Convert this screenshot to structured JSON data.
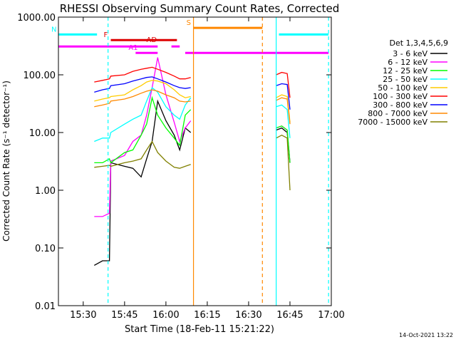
{
  "chart_data": {
    "type": "line",
    "title": "RHESSI Observing Summary Count Rates, Corrected",
    "xlabel": "Start Time (18-Feb-11 15:21:22)",
    "ylabel": "Corrected Count Rate (s⁻¹ detector⁻¹)",
    "footer": "14-Oct-2021 13:22",
    "yscale": "log",
    "xlim": [
      "15:21",
      "17:00"
    ],
    "ylim": [
      0.01,
      1000
    ],
    "x_ticks": [
      "15:30",
      "15:45",
      "16:00",
      "16:15",
      "16:30",
      "16:45",
      "17:00"
    ],
    "y_ticks": [
      "0.01",
      "0.10",
      "1.00",
      "10.00",
      "100.00",
      "1000.00"
    ],
    "legend_title": "Det 1,3,4,5,6,9",
    "legend_position": "right",
    "series": [
      {
        "name": "3 - 6 keV",
        "color": "#000000",
        "x": [
          "15:34",
          "15:37",
          "15:39.5",
          "15:40",
          "15:45",
          "15:48",
          "15:51",
          "15:53",
          "15:55",
          "15:57",
          "16:00",
          "16:03",
          "16:05",
          "16:07",
          "16:09",
          "16:40",
          "16:42",
          "16:44",
          "16:45"
        ],
        "y": [
          0.05,
          0.06,
          0.06,
          3.0,
          2.6,
          2.4,
          1.7,
          3.5,
          7,
          35,
          16,
          9,
          5,
          12,
          10,
          11,
          12,
          10,
          3
        ]
      },
      {
        "name": "6 - 12 keV",
        "color": "#ff00ff",
        "x": [
          "15:34",
          "15:37",
          "15:39.5",
          "15:40",
          "15:45",
          "15:48",
          "15:51",
          "15:53",
          "15:55",
          "15:57",
          "16:00",
          "16:03",
          "16:05",
          "16:07",
          "16:09",
          "16:40",
          "16:42",
          "16:44",
          "16:45"
        ],
        "y": [
          0.35,
          0.35,
          0.4,
          3.2,
          4,
          7,
          9,
          20,
          60,
          200,
          45,
          15,
          7,
          12,
          16,
          12,
          13,
          11,
          3
        ]
      },
      {
        "name": "12 - 25 keV",
        "color": "#00ff00",
        "x": [
          "15:34",
          "15:37",
          "15:39.5",
          "15:40",
          "15:45",
          "15:48",
          "15:51",
          "15:53",
          "15:55",
          "15:57",
          "16:00",
          "16:03",
          "16:05",
          "16:07",
          "16:09",
          "16:40",
          "16:42",
          "16:44",
          "16:45"
        ],
        "y": [
          3,
          3,
          3.5,
          3,
          4.5,
          5,
          9,
          14,
          40,
          20,
          12,
          8,
          6,
          20,
          25,
          12,
          13,
          11,
          3
        ]
      },
      {
        "name": "25 - 50 keV",
        "color": "#00ffff",
        "x": [
          "15:34",
          "15:37",
          "15:39.5",
          "15:40",
          "15:45",
          "15:48",
          "15:51",
          "15:53",
          "15:55",
          "15:57",
          "16:00",
          "16:03",
          "16:05",
          "16:07",
          "16:09",
          "16:40",
          "16:42",
          "16:44",
          "16:45"
        ],
        "y": [
          7,
          8,
          8,
          10,
          14,
          17,
          20,
          35,
          60,
          50,
          28,
          20,
          17,
          30,
          40,
          28,
          30,
          25,
          8
        ]
      },
      {
        "name": "50 - 100 keV",
        "color": "#ffcc00",
        "x": [
          "15:34",
          "15:37",
          "15:39.5",
          "15:40",
          "15:45",
          "15:48",
          "15:51",
          "15:53",
          "15:55",
          "15:57",
          "16:00",
          "16:03",
          "16:05",
          "16:07",
          "16:09",
          "16:40",
          "16:42",
          "16:44",
          "16:45"
        ],
        "y": [
          35,
          38,
          40,
          42,
          45,
          55,
          65,
          75,
          80,
          78,
          70,
          55,
          45,
          40,
          42,
          40,
          45,
          42,
          15
        ]
      },
      {
        "name": "100 - 300 keV",
        "color": "#ff0000",
        "x": [
          "15:34",
          "15:37",
          "15:39.5",
          "15:40",
          "15:45",
          "15:48",
          "15:51",
          "15:53",
          "15:55",
          "15:57",
          "16:00",
          "16:03",
          "16:05",
          "16:07",
          "16:09",
          "16:40",
          "16:42",
          "16:44",
          "16:45"
        ],
        "y": [
          75,
          80,
          85,
          95,
          100,
          115,
          125,
          130,
          135,
          125,
          110,
          95,
          85,
          85,
          90,
          100,
          110,
          105,
          40
        ]
      },
      {
        "name": "300 - 800 keV",
        "color": "#0000ff",
        "x": [
          "15:34",
          "15:37",
          "15:39.5",
          "15:40",
          "15:45",
          "15:48",
          "15:51",
          "15:53",
          "15:55",
          "15:57",
          "16:00",
          "16:03",
          "16:05",
          "16:07",
          "16:09",
          "16:40",
          "16:42",
          "16:44",
          "16:45"
        ],
        "y": [
          50,
          55,
          58,
          65,
          70,
          78,
          85,
          90,
          92,
          85,
          75,
          65,
          60,
          58,
          60,
          65,
          70,
          68,
          25
        ]
      },
      {
        "name": "800 - 7000 keV",
        "color": "#ff8800",
        "x": [
          "15:34",
          "15:37",
          "15:39.5",
          "15:40",
          "15:45",
          "15:48",
          "15:51",
          "15:53",
          "15:55",
          "15:57",
          "16:00",
          "16:03",
          "16:05",
          "16:07",
          "16:09",
          "16:40",
          "16:42",
          "16:44",
          "16:45"
        ],
        "y": [
          28,
          30,
          32,
          35,
          38,
          42,
          48,
          52,
          55,
          52,
          45,
          40,
          35,
          34,
          35,
          36,
          40,
          38,
          14
        ]
      },
      {
        "name": "7000 - 15000 keV",
        "color": "#808000",
        "x": [
          "15:34",
          "15:37",
          "15:39.5",
          "15:40",
          "15:45",
          "15:48",
          "15:51",
          "15:53",
          "15:55",
          "15:57",
          "16:00",
          "16:03",
          "16:05",
          "16:07",
          "16:09",
          "16:40",
          "16:42",
          "16:44",
          "16:45"
        ],
        "y": [
          2.5,
          2.6,
          2.7,
          2.6,
          3.0,
          3.2,
          3.5,
          5,
          7,
          4.5,
          3.2,
          2.5,
          2.4,
          2.6,
          2.8,
          8,
          9,
          8,
          1
        ]
      }
    ],
    "flag_bars": [
      {
        "label": "N",
        "color": "#00ffff",
        "level": 500,
        "segments": [
          [
            "15:21",
            "15:35"
          ],
          [
            "16:41",
            "16:59"
          ]
        ]
      },
      {
        "label": "F",
        "color": "#dd0000",
        "level": 400,
        "segments": [
          [
            "15:40",
            "16:04"
          ]
        ]
      },
      {
        "label": "AD",
        "color": "#dd0000",
        "level": 330,
        "segments": []
      },
      {
        "label": "A1",
        "color": "#ff00ff",
        "level": 240,
        "segments": [
          [
            "15:49",
            "15:57"
          ],
          [
            "16:07",
            "16:59"
          ]
        ]
      },
      {
        "label": "S",
        "color": "#ff8800",
        "level": 650,
        "segments": [
          [
            "16:10",
            "16:35"
          ]
        ]
      },
      {
        "label": "",
        "color": "#ff00ff",
        "level": 310,
        "segments": [
          [
            "15:21",
            "15:57"
          ],
          [
            "16:02",
            "16:05"
          ]
        ]
      }
    ],
    "vertical_markers": [
      {
        "x": "15:39",
        "color": "#00ffff",
        "style": "dashed"
      },
      {
        "x": "16:10",
        "color": "#ff8800",
        "style": "solid"
      },
      {
        "x": "16:35",
        "color": "#ff8800",
        "style": "dashed"
      },
      {
        "x": "16:40",
        "color": "#00ffff",
        "style": "solid"
      },
      {
        "x": "16:59",
        "color": "#00ffff",
        "style": "dashed"
      }
    ]
  }
}
